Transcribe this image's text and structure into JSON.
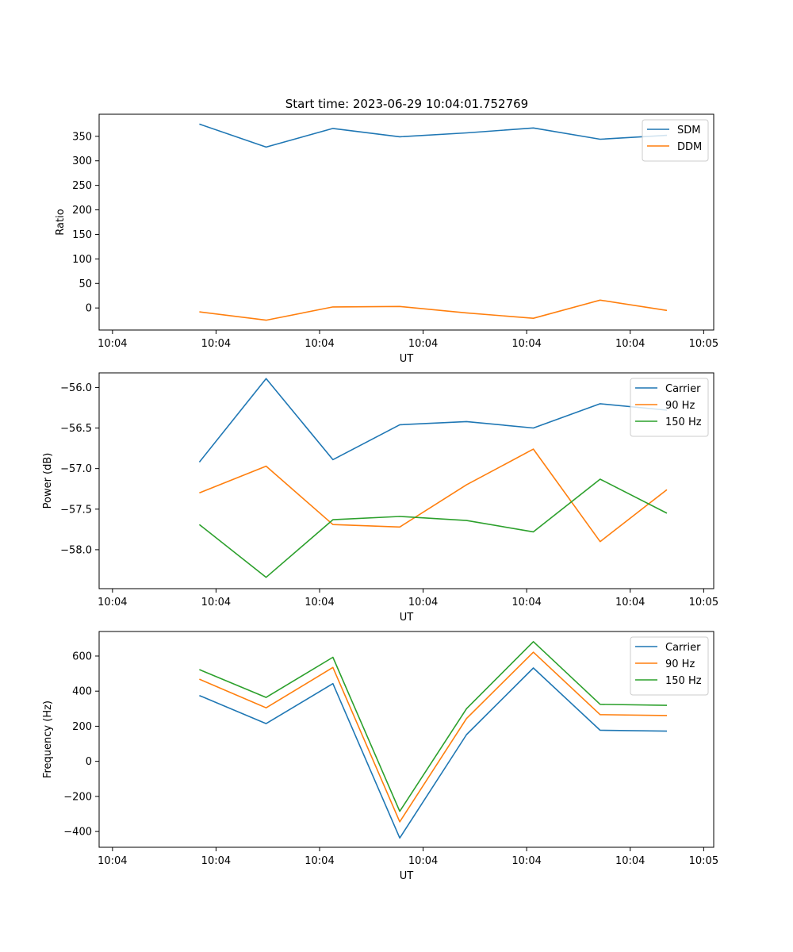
{
  "figure": {
    "title": "Start time: 2023-06-29 10:04:01.752769"
  },
  "chart_data": [
    {
      "type": "line",
      "title": "Start time: 2023-06-29 10:04:01.752769",
      "xlabel": "UT",
      "ylabel": "Ratio",
      "x_tick_labels": [
        "10:04",
        "10:04",
        "10:04",
        "10:04",
        "10:04",
        "10:04",
        "10:05"
      ],
      "x_range": [
        -0.5,
        8.7
      ],
      "x": [
        1,
        2,
        3,
        4,
        5,
        6,
        7,
        8
      ],
      "ylim": [
        -45,
        395
      ],
      "yticks": [
        0,
        50,
        100,
        150,
        200,
        250,
        300,
        350
      ],
      "legend_position": "top-right",
      "grid": false,
      "series": [
        {
          "name": "SDM",
          "color": "#1f77b4",
          "values": [
            375,
            328,
            366,
            349,
            357,
            367,
            344,
            352
          ]
        },
        {
          "name": "DDM",
          "color": "#ff7f0e",
          "values": [
            -8,
            -25,
            2,
            3,
            -10,
            -21,
            16,
            -5
          ]
        }
      ]
    },
    {
      "type": "line",
      "title": "",
      "xlabel": "UT",
      "ylabel": "Power (dB)",
      "x_tick_labels": [
        "10:04",
        "10:04",
        "10:04",
        "10:04",
        "10:04",
        "10:04",
        "10:05"
      ],
      "x_range": [
        -0.5,
        8.7
      ],
      "x": [
        1,
        2,
        3,
        4,
        5,
        6,
        7,
        8
      ],
      "ylim": [
        -58.48,
        -55.82
      ],
      "yticks": [
        -58.0,
        -57.5,
        -57.0,
        -56.5,
        -56.0
      ],
      "ytick_labels": [
        "−58.0",
        "−57.5",
        "−57.0",
        "−56.5",
        "−56.0"
      ],
      "legend_position": "top-right",
      "grid": false,
      "series": [
        {
          "name": "Carrier",
          "color": "#1f77b4",
          "values": [
            -56.92,
            -55.89,
            -56.89,
            -56.46,
            -56.42,
            -56.5,
            -56.2,
            -56.28
          ]
        },
        {
          "name": "90 Hz",
          "color": "#ff7f0e",
          "values": [
            -57.3,
            -56.97,
            -57.69,
            -57.72,
            -57.2,
            -56.76,
            -57.9,
            -57.26
          ]
        },
        {
          "name": "150 Hz",
          "color": "#2ca02c",
          "values": [
            -57.69,
            -58.34,
            -57.63,
            -57.59,
            -57.64,
            -57.78,
            -57.13,
            -57.55
          ]
        }
      ]
    },
    {
      "type": "line",
      "title": "",
      "xlabel": "UT",
      "ylabel": "Frequency (Hz)",
      "x_tick_labels": [
        "10:04",
        "10:04",
        "10:04",
        "10:04",
        "10:04",
        "10:04",
        "10:05"
      ],
      "x_range": [
        -0.5,
        8.7
      ],
      "x": [
        1,
        2,
        3,
        4,
        5,
        6,
        7,
        8
      ],
      "ylim": [
        -490,
        740
      ],
      "yticks": [
        -400,
        -200,
        0,
        200,
        400,
        600
      ],
      "ytick_labels": [
        "−400",
        "−200",
        "0",
        "200",
        "400",
        "600"
      ],
      "legend_position": "top-right",
      "grid": false,
      "series": [
        {
          "name": "Carrier",
          "color": "#1f77b4",
          "values": [
            375,
            215,
            443,
            -437,
            152,
            532,
            177,
            172
          ]
        },
        {
          "name": "90 Hz",
          "color": "#ff7f0e",
          "values": [
            468,
            305,
            535,
            -345,
            244,
            622,
            266,
            261
          ]
        },
        {
          "name": "150 Hz",
          "color": "#2ca02c",
          "values": [
            523,
            364,
            593,
            -285,
            300,
            682,
            325,
            319
          ]
        }
      ]
    }
  ]
}
